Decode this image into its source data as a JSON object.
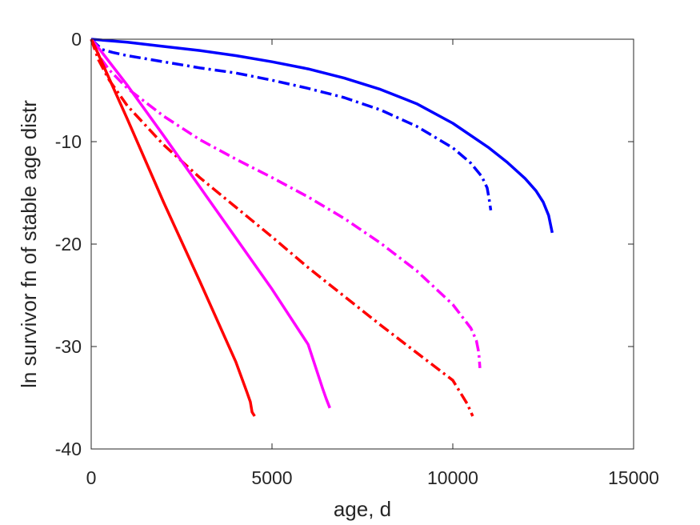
{
  "chart_data": {
    "type": "line",
    "title": "",
    "xlabel": "age, d",
    "ylabel": "ln survivor fn of stable age distr",
    "xlim": [
      0,
      15000
    ],
    "ylim": [
      -40,
      0
    ],
    "xticks": [
      0,
      5000,
      10000,
      15000
    ],
    "yticks": [
      0,
      -10,
      -20,
      -30,
      -40
    ],
    "xtick_labels": [
      "0",
      "5000",
      "10000",
      "15000"
    ],
    "ytick_labels": [
      "0",
      "-10",
      "-20",
      "-30",
      "-40"
    ],
    "grid": false,
    "series": [
      {
        "color": "#0000ff",
        "style": "solid",
        "x": [
          0,
          1000,
          2000,
          3000,
          4000,
          5000,
          6000,
          7000,
          8000,
          9000,
          10000,
          11000,
          11500,
          12000,
          12300,
          12500,
          12650,
          12750
        ],
        "y": [
          0,
          -0.3,
          -0.7,
          -1.1,
          -1.6,
          -2.2,
          -2.9,
          -3.8,
          -4.9,
          -6.3,
          -8.2,
          -10.6,
          -12.0,
          -13.6,
          -14.8,
          -15.9,
          -17.2,
          -18.9
        ]
      },
      {
        "color": "#0000ff",
        "style": "dashdot",
        "x": [
          0,
          300,
          600,
          1000,
          2000,
          3000,
          4000,
          5000,
          6000,
          7000,
          8000,
          9000,
          10000,
          10500,
          10800,
          10950,
          11000,
          11050
        ],
        "y": [
          0,
          -1.0,
          -1.3,
          -1.6,
          -2.2,
          -2.8,
          -3.3,
          -4.0,
          -4.8,
          -5.7,
          -6.9,
          -8.5,
          -10.6,
          -12.1,
          -13.4,
          -14.5,
          -15.5,
          -16.7
        ]
      },
      {
        "color": "#ff00ff",
        "style": "dashdot",
        "x": [
          0,
          250,
          500,
          1000,
          2000,
          3000,
          4000,
          5000,
          6000,
          7000,
          8000,
          9000,
          10000,
          10500,
          10650,
          10720,
          10750
        ],
        "y": [
          0,
          -1.8,
          -3.0,
          -4.8,
          -7.5,
          -9.8,
          -11.7,
          -13.5,
          -15.4,
          -17.5,
          -19.9,
          -22.6,
          -25.9,
          -28.2,
          -29.4,
          -30.6,
          -32.1
        ]
      },
      {
        "color": "#ff0000",
        "style": "dashdot",
        "x": [
          0,
          200,
          500,
          1000,
          2000,
          3000,
          4000,
          5000,
          6000,
          7000,
          8000,
          9000,
          10000,
          10400,
          10550
        ],
        "y": [
          0,
          -2.0,
          -4.0,
          -6.5,
          -10.3,
          -13.5,
          -16.4,
          -19.3,
          -22.3,
          -25.1,
          -27.9,
          -30.6,
          -33.3,
          -35.6,
          -36.8
        ]
      },
      {
        "color": "#ff00ff",
        "style": "solid",
        "x": [
          0,
          100,
          300,
          1000,
          2000,
          3000,
          4000,
          5000,
          6000,
          6400,
          6500,
          6600
        ],
        "y": [
          0,
          -0.4,
          -1.3,
          -4.5,
          -9.4,
          -14.4,
          -19.4,
          -24.4,
          -29.8,
          -34.1,
          -35.1,
          -36.0
        ]
      },
      {
        "color": "#ff0000",
        "style": "solid",
        "x": [
          0,
          100,
          1000,
          2000,
          3000,
          4000,
          4300,
          4400,
          4450,
          4520
        ],
        "y": [
          0,
          -0.7,
          -7.8,
          -15.9,
          -23.6,
          -31.5,
          -34.4,
          -35.4,
          -36.4,
          -36.8
        ]
      }
    ]
  }
}
